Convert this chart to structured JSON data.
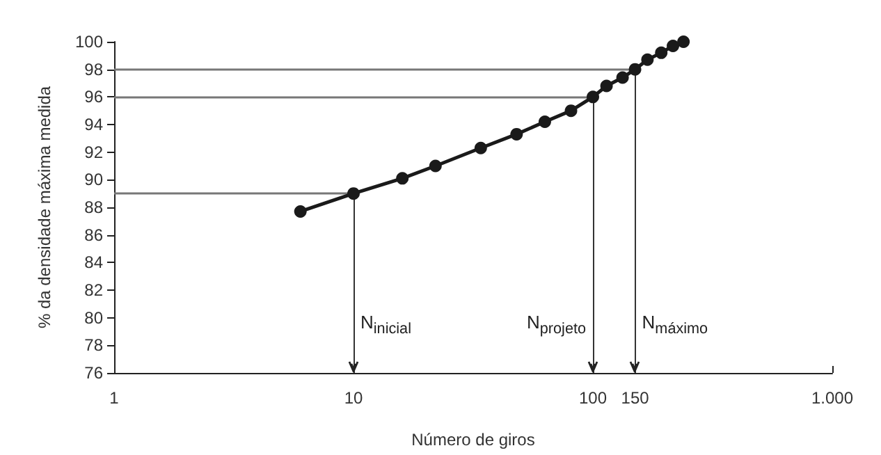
{
  "chart_data": {
    "type": "line",
    "xlabel": "Número de giros",
    "ylabel": "% da densidade máxima medida",
    "x": [
      6,
      10,
      16,
      22,
      34,
      48,
      63,
      81,
      100,
      114,
      133,
      150,
      169,
      193,
      216,
      239
    ],
    "series": [
      {
        "color": "#1a1a1a",
        "values": [
          87.7,
          89,
          90.1,
          91,
          92.3,
          93.3,
          94.2,
          95,
          96,
          96.8,
          97.4,
          98,
          98.7,
          99.2,
          99.7,
          100
        ]
      }
    ],
    "log": "x",
    "xlim": [
      1,
      1000
    ],
    "xticks": [
      1,
      10,
      100,
      150,
      {
        "value": 1000,
        "label": "1.000"
      }
    ],
    "ylim": [
      76,
      100
    ],
    "yticks": [
      76,
      78,
      80,
      82,
      84,
      86,
      88,
      90,
      92,
      94,
      96,
      98,
      100
    ],
    "ref_lines": [
      {
        "axis": "y",
        "value": 89
      },
      {
        "axis": "y",
        "value": 96
      },
      {
        "axis": "y",
        "value": 98
      },
      {
        "axis": "x",
        "value": 10,
        "label": "N$_{inicial}$"
      },
      {
        "axis": "x",
        "value": 100,
        "label": "N$_{projeto}$"
      },
      {
        "axis": "x",
        "value": 150,
        "label": "N$_{máximo}$"
      }
    ],
    "grid": false,
    "marker": "circle",
    "line_style": "solid"
  }
}
